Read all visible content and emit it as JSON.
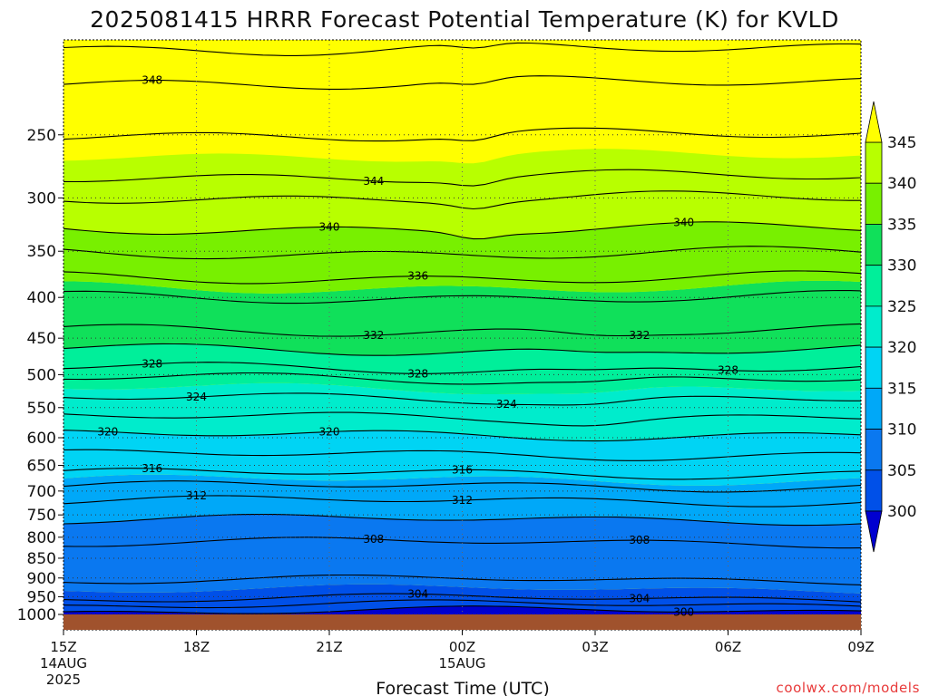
{
  "title": "2025081415 HRRR Forecast Potential Temperature (K) for KVLD",
  "credit": "coolwx.com/models",
  "colors": {
    "bands": [
      {
        "lo": 295,
        "hi": 300,
        "color": "#0000d0"
      },
      {
        "lo": 300,
        "hi": 305,
        "color": "#0050e8"
      },
      {
        "lo": 305,
        "hi": 310,
        "color": "#0a78f0"
      },
      {
        "lo": 310,
        "hi": 315,
        "color": "#00a8f8"
      },
      {
        "lo": 315,
        "hi": 320,
        "color": "#00d4f4"
      },
      {
        "lo": 320,
        "hi": 325,
        "color": "#00eccc"
      },
      {
        "lo": 325,
        "hi": 330,
        "color": "#00ef9a"
      },
      {
        "lo": 330,
        "hi": 335,
        "color": "#10e05a"
      },
      {
        "lo": 335,
        "hi": 340,
        "color": "#78f000"
      },
      {
        "lo": 340,
        "hi": 345,
        "color": "#b8ff00"
      },
      {
        "lo": 345,
        "hi": 352,
        "color": "#ffff00"
      }
    ],
    "ground": "#a0522d",
    "contour": "#000000"
  },
  "chart_data": {
    "type": "heatmap",
    "title": "2025081415 HRRR Forecast Potential Temperature (K) for KVLD",
    "xlabel": "Forecast Time (UTC)",
    "ylabel": "",
    "units": "K",
    "y_axis": "pressure (hPa), reversed, log scale",
    "ylim": [
      1000,
      190
    ],
    "x_ticks": [
      {
        "hour": 0,
        "label": "15Z",
        "sub": [
          "14AUG",
          "2025"
        ]
      },
      {
        "hour": 3,
        "label": "18Z",
        "sub": []
      },
      {
        "hour": 6,
        "label": "21Z",
        "sub": []
      },
      {
        "hour": 9,
        "label": "00Z",
        "sub": [
          "15AUG"
        ]
      },
      {
        "hour": 12,
        "label": "03Z",
        "sub": []
      },
      {
        "hour": 15,
        "label": "06Z",
        "sub": []
      },
      {
        "hour": 18,
        "label": "09Z",
        "sub": []
      }
    ],
    "y_ticks": [
      250,
      300,
      350,
      400,
      450,
      500,
      550,
      600,
      650,
      700,
      750,
      800,
      850,
      900,
      950,
      1000
    ],
    "colorbar_ticks": [
      345,
      340,
      335,
      330,
      325,
      320,
      315,
      310,
      305,
      300
    ],
    "contour_interval": 2,
    "grid": true,
    "contour_labels": [
      {
        "value": "348",
        "hour": 2.0,
        "p": 215
      },
      {
        "value": "344",
        "hour": 7.0,
        "p": 283
      },
      {
        "value": "340",
        "hour": 6.0,
        "p": 330
      },
      {
        "value": "340",
        "hour": 14.0,
        "p": 322
      },
      {
        "value": "336",
        "hour": 8.0,
        "p": 378
      },
      {
        "value": "332",
        "hour": 7.0,
        "p": 443
      },
      {
        "value": "332",
        "hour": 13.0,
        "p": 428
      },
      {
        "value": "328",
        "hour": 2.0,
        "p": 490
      },
      {
        "value": "328",
        "hour": 8.0,
        "p": 493
      },
      {
        "value": "328",
        "hour": 15.0,
        "p": 490
      },
      {
        "value": "324",
        "hour": 3.0,
        "p": 537
      },
      {
        "value": "324",
        "hour": 10.0,
        "p": 530
      },
      {
        "value": "320",
        "hour": 1.0,
        "p": 592
      },
      {
        "value": "320",
        "hour": 6.0,
        "p": 596
      },
      {
        "value": "316",
        "hour": 2.0,
        "p": 672
      },
      {
        "value": "316",
        "hour": 9.0,
        "p": 672
      },
      {
        "value": "312",
        "hour": 3.0,
        "p": 708
      },
      {
        "value": "312",
        "hour": 9.0,
        "p": 727
      },
      {
        "value": "308",
        "hour": 7.0,
        "p": 808
      },
      {
        "value": "308",
        "hour": 13.0,
        "p": 822
      },
      {
        "value": "304",
        "hour": 8.0,
        "p": 975
      },
      {
        "value": "304",
        "hour": 13.0,
        "p": 952
      },
      {
        "value": "300",
        "hour": 14.0,
        "p": 1002
      }
    ],
    "theta_profile": [
      {
        "theta": 300,
        "p": 990
      },
      {
        "theta": 304,
        "p": 955
      },
      {
        "theta": 306,
        "p": 905
      },
      {
        "theta": 308,
        "p": 812
      },
      {
        "theta": 310,
        "p": 760
      },
      {
        "theta": 312,
        "p": 720
      },
      {
        "theta": 314,
        "p": 690
      },
      {
        "theta": 316,
        "p": 665
      },
      {
        "theta": 318,
        "p": 630
      },
      {
        "theta": 320,
        "p": 595
      },
      {
        "theta": 322,
        "p": 565
      },
      {
        "theta": 324,
        "p": 535
      },
      {
        "theta": 326,
        "p": 505
      },
      {
        "theta": 328,
        "p": 490
      },
      {
        "theta": 330,
        "p": 465
      },
      {
        "theta": 332,
        "p": 440
      },
      {
        "theta": 334,
        "p": 400
      },
      {
        "theta": 336,
        "p": 378
      },
      {
        "theta": 338,
        "p": 352
      },
      {
        "theta": 340,
        "p": 328
      },
      {
        "theta": 342,
        "p": 300
      },
      {
        "theta": 344,
        "p": 282
      },
      {
        "theta": 346,
        "p": 250
      },
      {
        "theta": 348,
        "p": 215
      },
      {
        "theta": 350,
        "p": 195
      }
    ]
  }
}
